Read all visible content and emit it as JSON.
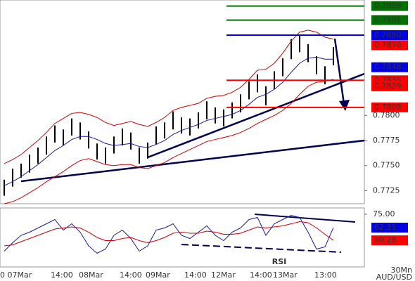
{
  "chart_data": [
    {
      "type": "ohlc",
      "symbol": "AUD/USD",
      "timeframe": "30Mn",
      "x_labels": [
        "0 07Mar",
        "14:00",
        "08Mar",
        "14:00",
        "09Mar",
        "14:00",
        "12Mar",
        "14:00",
        "13Mar",
        "13:00"
      ],
      "ylim": [
        0.7712,
        0.7915
      ],
      "yticks": [
        0.7725,
        {
          "value": 0.775,
          "label": "0.7750"
        },
        0.7775,
        {
          "value": 0.78,
          "label": "0.7800"
        }
      ],
      "high": [
        0.7736,
        0.7747,
        0.7752,
        0.7761,
        0.7768,
        0.7779,
        0.779,
        0.7786,
        0.7797,
        0.7793,
        0.7784,
        0.7772,
        0.7768,
        0.7779,
        0.7787,
        0.7783,
        0.7768,
        0.7773,
        0.7789,
        0.7793,
        0.7804,
        0.7798,
        0.7797,
        0.7803,
        0.7814,
        0.7808,
        0.7806,
        0.7813,
        0.7821,
        0.7834,
        0.7841,
        0.7829,
        0.7844,
        0.7857,
        0.7876,
        0.788,
        0.7871,
        0.7859,
        0.7849,
        0.7868
      ],
      "low": [
        0.772,
        0.7729,
        0.7738,
        0.7743,
        0.7752,
        0.7761,
        0.7773,
        0.777,
        0.778,
        0.7776,
        0.7767,
        0.7756,
        0.7752,
        0.7762,
        0.777,
        0.7766,
        0.7752,
        0.7757,
        0.7771,
        0.7777,
        0.7786,
        0.7782,
        0.778,
        0.7787,
        0.7796,
        0.7792,
        0.7789,
        0.7797,
        0.7803,
        0.7816,
        0.7823,
        0.781,
        0.7826,
        0.7839,
        0.7856,
        0.7863,
        0.7853,
        0.7841,
        0.7831,
        0.785
      ],
      "series": [
        {
          "color": "#1a1aa0",
          "values": [
            0.773,
            0.7734,
            0.7739,
            0.7745,
            0.7751,
            0.7758,
            0.7765,
            0.777,
            0.7776,
            0.7779,
            0.7779,
            0.7776,
            0.7772,
            0.777,
            0.7771,
            0.7772,
            0.7769,
            0.7768,
            0.7771,
            0.7775,
            0.7781,
            0.7785,
            0.7788,
            0.7791,
            0.7795,
            0.7797,
            0.7799,
            0.7801,
            0.7805,
            0.7811,
            0.7818,
            0.7821,
            0.7826,
            0.7833,
            0.7843,
            0.7852,
            0.7857,
            0.7858,
            0.7856,
            0.7856
          ]
        },
        {
          "color": "#d00000",
          "values": [
            0.7752,
            0.7756,
            0.7761,
            0.7768,
            0.7775,
            0.7783,
            0.7792,
            0.7797,
            0.7802,
            0.7803,
            0.7801,
            0.7798,
            0.7793,
            0.779,
            0.7792,
            0.7794,
            0.7791,
            0.7789,
            0.7793,
            0.7798,
            0.7805,
            0.7808,
            0.781,
            0.7812,
            0.7817,
            0.7819,
            0.782,
            0.7823,
            0.7828,
            0.7836,
            0.7845,
            0.7846,
            0.7852,
            0.7862,
            0.7874,
            0.7883,
            0.7885,
            0.7883,
            0.7878,
            0.7876
          ]
        },
        {
          "color": "#d00000",
          "values": [
            0.7712,
            0.7714,
            0.7718,
            0.7723,
            0.7728,
            0.7734,
            0.7739,
            0.7744,
            0.775,
            0.7755,
            0.7757,
            0.7754,
            0.7751,
            0.775,
            0.7751,
            0.7751,
            0.7748,
            0.7747,
            0.775,
            0.7753,
            0.7758,
            0.7762,
            0.7766,
            0.777,
            0.7774,
            0.7776,
            0.7778,
            0.778,
            0.7783,
            0.7787,
            0.7792,
            0.7796,
            0.78,
            0.7805,
            0.7812,
            0.7821,
            0.7829,
            0.7833,
            0.7834,
            0.7836
          ]
        }
      ],
      "levels": [
        {
          "value": 0.7909,
          "label": "0.7909",
          "color": "#007000",
          "line": true
        },
        {
          "value": 0.7895,
          "label": "0.7895",
          "color": "#007000",
          "line": true
        },
        {
          "value": 0.788,
          "label": "0.7880",
          "color": "#0000e0",
          "line": true
        },
        {
          "value": 0.787,
          "label": "0.7870",
          "color": "#ff0000",
          "line": false
        },
        {
          "value": 0.7848,
          "label": "0.7848",
          "color": "#0000e0",
          "line": false
        },
        {
          "value": 0.7835,
          "label": "0.7835",
          "color": "#ff0000",
          "line": true
        },
        {
          "value": 0.7829,
          "label": "0.7829",
          "color": "#ff0000",
          "line": false
        },
        {
          "value": 0.7808,
          "label": "0.7808",
          "color": "#ff0000",
          "line": true
        }
      ]
    },
    {
      "type": "rsi",
      "label": "RSI",
      "ylim": [
        25,
        81
      ],
      "yticks": [
        {
          "value": 75,
          "label": "75.00"
        }
      ],
      "series": [
        {
          "color": "#1a1aa0",
          "values": [
            40,
            48,
            55,
            58,
            62,
            66,
            70,
            60,
            66,
            58,
            45,
            38,
            42,
            55,
            60,
            52,
            40,
            45,
            60,
            62,
            66,
            55,
            52,
            58,
            64,
            55,
            50,
            58,
            62,
            70,
            72,
            55,
            66,
            70,
            74,
            72,
            58,
            42,
            44,
            62.31
          ]
        },
        {
          "color": "#d00000",
          "values": [
            45,
            46,
            49,
            52,
            55,
            58,
            61,
            62,
            63,
            62,
            58,
            53,
            50,
            50,
            52,
            53,
            50,
            48,
            50,
            53,
            57,
            58,
            57,
            57,
            59,
            58,
            56,
            56,
            57,
            60,
            63,
            62,
            63,
            64,
            66,
            68,
            67,
            62,
            56,
            50.28
          ]
        }
      ],
      "levels": [
        {
          "value": 62.31,
          "label": "62.31",
          "color": "#0000e0"
        },
        {
          "value": 50.28,
          "label": "50.28",
          "color": "#ff0000"
        }
      ]
    }
  ]
}
